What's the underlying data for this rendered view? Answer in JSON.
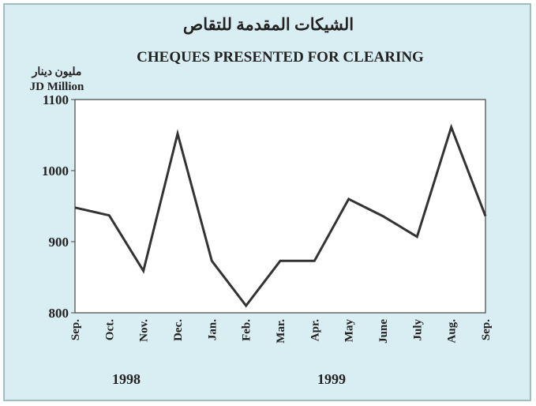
{
  "chart_data": {
    "type": "line",
    "title": "الشيكات المقدمة للتقاص",
    "subtitle": "CHEQUES PRESENTED FOR CLEARING",
    "y_label_ar": "مليون دينار",
    "y_label": "JD Million",
    "categories": [
      "Sep.",
      "Oct.",
      "Nov.",
      "Dec.",
      "Jan.",
      "Feb.",
      "Mar.",
      "Apr.",
      "May",
      "June",
      "July",
      "Aug.",
      "Sep."
    ],
    "values": [
      948,
      937,
      859,
      1052,
      873,
      810,
      873,
      873,
      960,
      936,
      907,
      1061,
      936
    ],
    "color": "#333333",
    "ylim": [
      800,
      1100
    ],
    "yticks": [
      800,
      900,
      1000,
      1100
    ],
    "annotations": [
      "1998",
      "1999"
    ]
  }
}
